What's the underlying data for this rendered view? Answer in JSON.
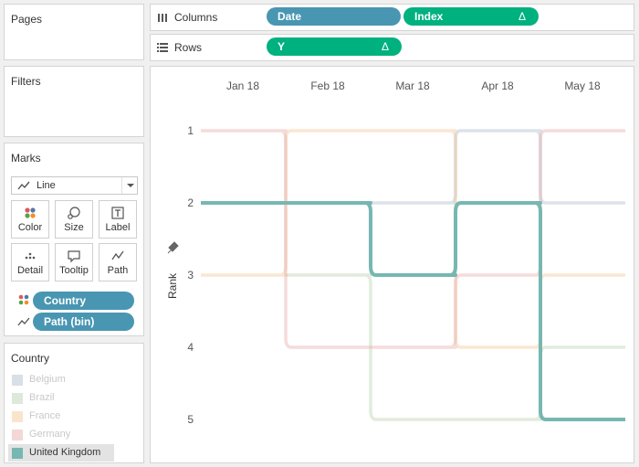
{
  "cards": {
    "pages_title": "Pages",
    "filters_title": "Filters",
    "marks_title": "Marks"
  },
  "marks": {
    "mark_type": "Line",
    "buttons": {
      "color": "Color",
      "size": "Size",
      "label": "Label",
      "detail": "Detail",
      "tooltip": "Tooltip",
      "path": "Path"
    },
    "pills": {
      "color_field": "Country",
      "path_field": "Path (bin)"
    }
  },
  "shelves": {
    "columns_label": "Columns",
    "rows_label": "Rows",
    "columns_pills": [
      "Date",
      "Index"
    ],
    "rows_pills": [
      "Y"
    ],
    "delta": "Δ"
  },
  "legend": {
    "title": "Country",
    "items": [
      {
        "label": "Belgium",
        "color": "#a9b9ca",
        "active": false
      },
      {
        "label": "Brazil",
        "color": "#b4cfaa",
        "active": false
      },
      {
        "label": "France",
        "color": "#f2c48f",
        "active": false
      },
      {
        "label": "Germany",
        "color": "#e6a7a7",
        "active": false
      },
      {
        "label": "United Kingdom",
        "color": "#76b7b2",
        "active": true
      }
    ]
  },
  "chart_data": {
    "type": "line",
    "x": [
      "Jan 18",
      "Feb 18",
      "Mar 18",
      "Apr 18",
      "May 18"
    ],
    "ylabel": "Rank",
    "yticks": [
      1,
      2,
      3,
      4,
      5
    ],
    "y_reversed": true,
    "series": [
      {
        "name": "Belgium",
        "color": "#a9b9ca",
        "values": [
          null,
          null,
          2,
          1,
          2
        ]
      },
      {
        "name": "Brazil",
        "color": "#b4cfaa",
        "values": [
          null,
          3,
          5,
          5,
          4
        ]
      },
      {
        "name": "France",
        "color": "#f2c48f",
        "values": [
          3,
          1,
          1,
          4,
          3
        ]
      },
      {
        "name": "Germany",
        "color": "#e6a7a7",
        "values": [
          1,
          4,
          4,
          3,
          1
        ]
      },
      {
        "name": "United Kingdom",
        "color": "#76b7b2",
        "values": [
          2,
          2,
          3,
          2,
          5
        ]
      }
    ],
    "highlighted": "United Kingdom"
  }
}
